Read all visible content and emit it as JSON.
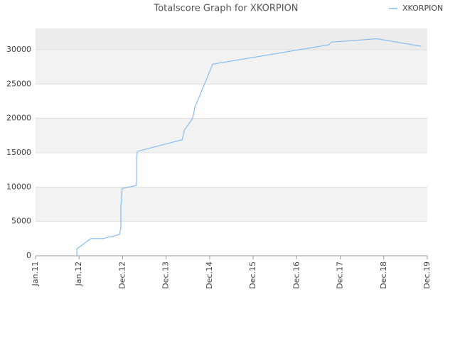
{
  "chart_data": {
    "type": "line",
    "title": "Totalscore Graph for XKORPION",
    "series": [
      {
        "name": "XKORPION",
        "color": "#88bbee",
        "x": [
          0.95,
          0.95,
          1.27,
          1.55,
          1.93,
          1.96,
          1.96,
          1.99,
          2.29,
          2.32,
          2.32,
          2.34,
          3.37,
          3.42,
          3.61,
          3.66,
          4.07,
          6.73,
          6.8,
          7.84,
          8.86
        ],
        "values": [
          0,
          1000,
          2500,
          2500,
          3100,
          4100,
          7200,
          9800,
          10200,
          10300,
          14000,
          15200,
          16900,
          18300,
          20000,
          21600,
          27900,
          30700,
          31100,
          31600,
          30500
        ]
      }
    ],
    "xlim": [
      0,
      9
    ],
    "xticks": [
      {
        "value": 0,
        "label": "Jan.11"
      },
      {
        "value": 1,
        "label": "Jan.12"
      },
      {
        "value": 2,
        "label": "Dec.12"
      },
      {
        "value": 3,
        "label": "Dec.13"
      },
      {
        "value": 4,
        "label": "Dec.14"
      },
      {
        "value": 5,
        "label": "Dec.15"
      },
      {
        "value": 6,
        "label": "Dec.16"
      },
      {
        "value": 7,
        "label": "Dec.17"
      },
      {
        "value": 8,
        "label": "Dec.18"
      },
      {
        "value": 9,
        "label": "Dec.19"
      }
    ],
    "ylim": [
      0,
      33100
    ],
    "yticks": [
      0,
      5000,
      10000,
      15000,
      20000,
      25000,
      30000
    ],
    "grid": true,
    "legend": "top-right"
  }
}
